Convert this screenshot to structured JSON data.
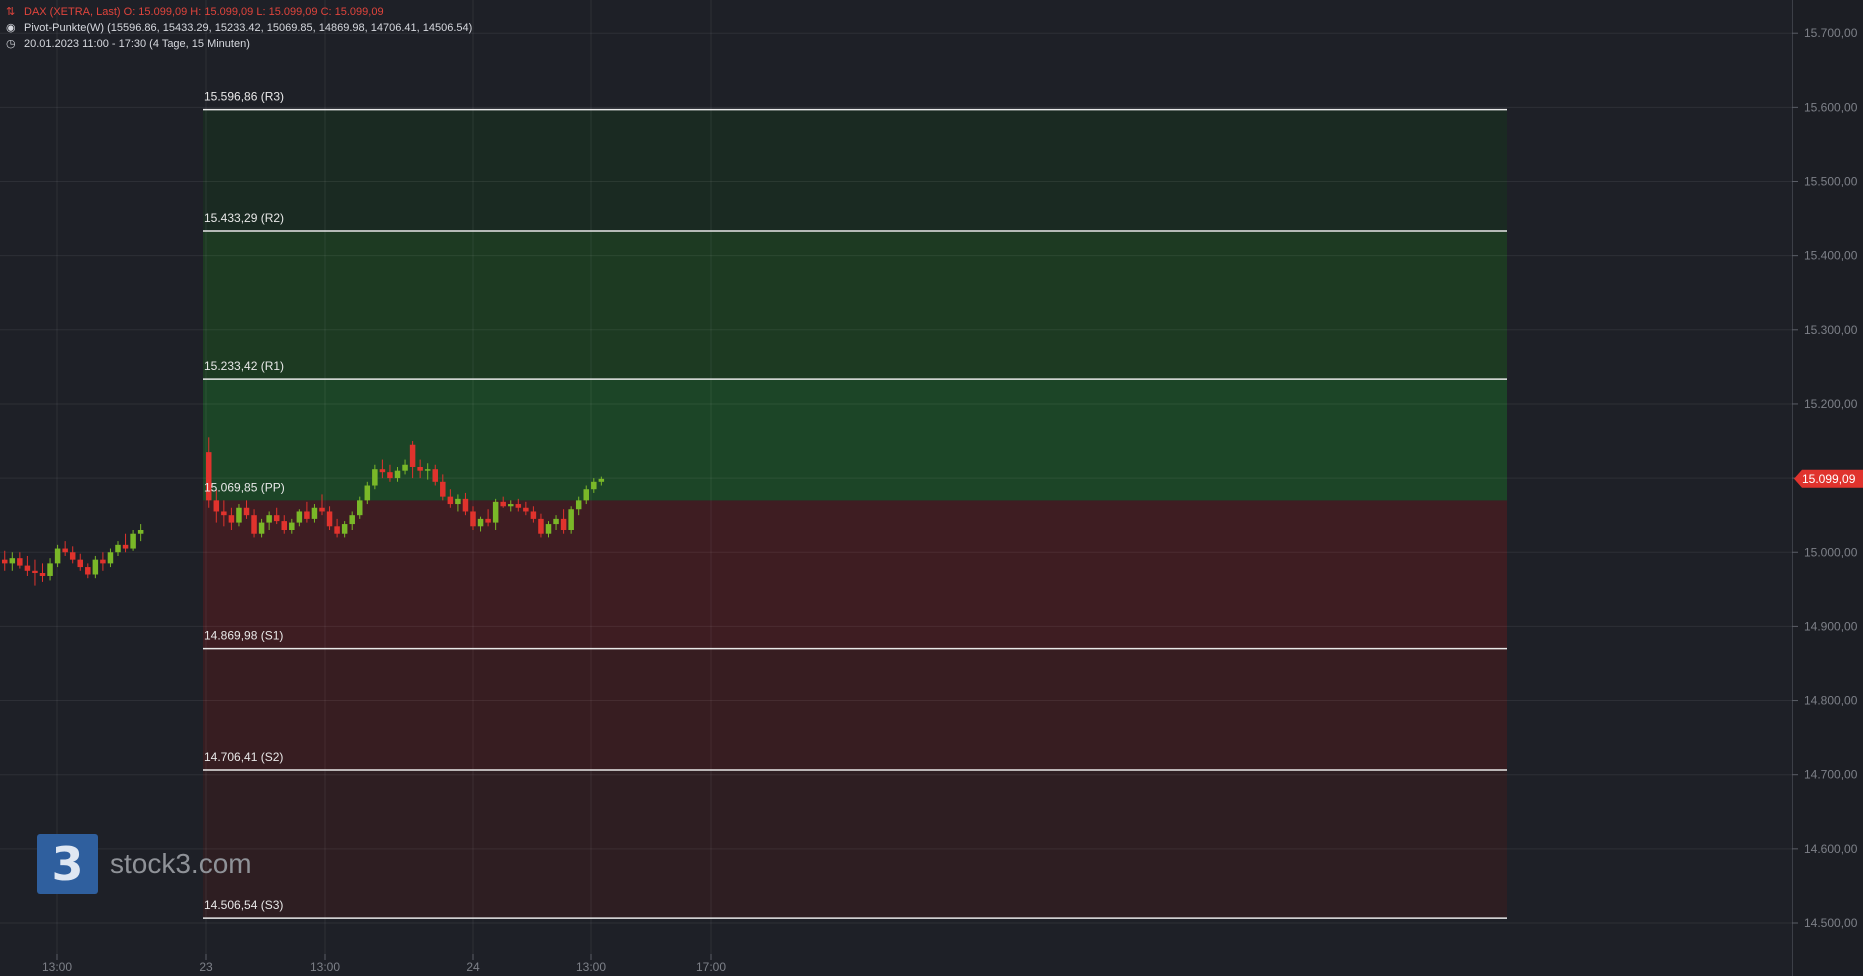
{
  "header": {
    "instrument_line": "DAX (XETRA, Last)  O: 15.099,09  H: 15.099,09  L: 15.099,09  C: 15.099,09",
    "indicator_line": "Pivot-Punkte(W)  (15596.86, 15433.29, 15233.42, 15069.85, 14869.98, 14706.41, 14506.54)",
    "period_line": "20.01.2023 11:00 - 17:30   (4 Tage, 15 Minuten)"
  },
  "icons": {
    "instrument": "candlestick-icon",
    "indicator": "target-icon",
    "period": "clock-icon"
  },
  "brand": {
    "logo_glyph": "3",
    "name": "stock3.com"
  },
  "chart_data": {
    "type": "candlestick",
    "y_axis": {
      "ylim": [
        14480,
        15725
      ],
      "ticks": [
        14500,
        14600,
        14700,
        14800,
        14900,
        15000,
        15100,
        15200,
        15300,
        15400,
        15500,
        15600,
        15700
      ],
      "tick_labels": [
        "14.500,00",
        "14.600,00",
        "14.700,00",
        "14.800,00",
        "14.900,00",
        "15.000,00",
        "15.100,00",
        "15.200,00",
        "15.300,00",
        "15.400,00",
        "15.500,00",
        "15.600,00",
        "15.700,00"
      ],
      "position": "right"
    },
    "x_axis": {
      "tick_labels": [
        "13:00",
        "23",
        "13:00",
        "24",
        "13:00",
        "17:00"
      ],
      "interval": "15 Minuten"
    },
    "last_price": {
      "value": 15099.09,
      "label": "15.099,09"
    },
    "grid": true,
    "pivot_levels": [
      {
        "name": "R3",
        "value": 15596.86,
        "label": "15.596,86 (R3)"
      },
      {
        "name": "R2",
        "value": 15433.29,
        "label": "15.433,29 (R2)"
      },
      {
        "name": "R1",
        "value": 15233.42,
        "label": "15.233,42 (R1)"
      },
      {
        "name": "PP",
        "value": 15069.85,
        "label": "15.069,85 (PP)"
      },
      {
        "name": "S1",
        "value": 14869.98,
        "label": "14.869,98 (S1)"
      },
      {
        "name": "S2",
        "value": 14706.41,
        "label": "14.706,41 (S2)"
      },
      {
        "name": "S3",
        "value": 14506.54,
        "label": "14.506,54 (S3)"
      }
    ],
    "candles": [
      [
        14990,
        15002,
        14975,
        14985
      ],
      [
        14985,
        15000,
        14975,
        14992
      ],
      [
        14992,
        15000,
        14978,
        14982
      ],
      [
        14982,
        14995,
        14968,
        14975
      ],
      [
        14975,
        14990,
        14955,
        14972
      ],
      [
        14972,
        14985,
        14960,
        14968
      ],
      [
        14968,
        14992,
        14962,
        14985
      ],
      [
        14985,
        15010,
        14980,
        15005
      ],
      [
        15005,
        15015,
        14995,
        15000
      ],
      [
        15000,
        15008,
        14985,
        14990
      ],
      [
        14990,
        14998,
        14975,
        14980
      ],
      [
        14980,
        14985,
        14965,
        14970
      ],
      [
        14970,
        14995,
        14965,
        14990
      ],
      [
        14990,
        15000,
        14975,
        14985
      ],
      [
        14985,
        15005,
        14980,
        15000
      ],
      [
        15000,
        15015,
        14995,
        15010
      ],
      [
        15010,
        15025,
        15000,
        15005
      ],
      [
        15005,
        15030,
        15002,
        15025
      ],
      [
        15025,
        15038,
        15015,
        15030
      ],
      [
        15135,
        15155,
        15060,
        15070
      ],
      [
        15070,
        15085,
        15040,
        15055
      ],
      [
        15055,
        15070,
        15035,
        15050
      ],
      [
        15050,
        15060,
        15030,
        15040
      ],
      [
        15040,
        15065,
        15035,
        15060
      ],
      [
        15060,
        15070,
        15045,
        15050
      ],
      [
        15050,
        15058,
        15020,
        15025
      ],
      [
        15025,
        15045,
        15020,
        15040
      ],
      [
        15040,
        15055,
        15030,
        15050
      ],
      [
        15050,
        15060,
        15038,
        15042
      ],
      [
        15042,
        15050,
        15025,
        15030
      ],
      [
        15030,
        15045,
        15025,
        15040
      ],
      [
        15040,
        15058,
        15035,
        15055
      ],
      [
        15055,
        15068,
        15040,
        15045
      ],
      [
        15045,
        15065,
        15040,
        15060
      ],
      [
        15060,
        15078,
        15050,
        15055
      ],
      [
        15055,
        15062,
        15030,
        15035
      ],
      [
        15035,
        15045,
        15020,
        15025
      ],
      [
        15025,
        15042,
        15020,
        15038
      ],
      [
        15038,
        15055,
        15030,
        15050
      ],
      [
        15050,
        15075,
        15045,
        15070
      ],
      [
        15070,
        15095,
        15065,
        15090
      ],
      [
        15090,
        15118,
        15085,
        15112
      ],
      [
        15112,
        15125,
        15100,
        15108
      ],
      [
        15108,
        15118,
        15095,
        15100
      ],
      [
        15100,
        15115,
        15095,
        15110
      ],
      [
        15110,
        15125,
        15105,
        15118
      ],
      [
        15145,
        15150,
        15100,
        15115
      ],
      [
        15115,
        15125,
        15100,
        15110
      ],
      [
        15110,
        15120,
        15098,
        15112
      ],
      [
        15112,
        15118,
        15090,
        15095
      ],
      [
        15095,
        15105,
        15070,
        15075
      ],
      [
        15075,
        15085,
        15060,
        15065
      ],
      [
        15065,
        15078,
        15055,
        15072
      ],
      [
        15072,
        15080,
        15050,
        15055
      ],
      [
        15055,
        15062,
        15030,
        15035
      ],
      [
        15035,
        15048,
        15028,
        15045
      ],
      [
        15045,
        15058,
        15035,
        15040
      ],
      [
        15040,
        15072,
        15030,
        15068
      ],
      [
        15068,
        15075,
        15060,
        15062
      ],
      [
        15062,
        15070,
        15055,
        15065
      ],
      [
        15065,
        15072,
        15055,
        15060
      ],
      [
        15060,
        15068,
        15050,
        15055
      ],
      [
        15055,
        15062,
        15040,
        15045
      ],
      [
        15045,
        15052,
        15020,
        15025
      ],
      [
        15025,
        15042,
        15020,
        15038
      ],
      [
        15038,
        15050,
        15030,
        15045
      ],
      [
        15045,
        15058,
        15025,
        15030
      ],
      [
        15030,
        15062,
        15025,
        15058
      ],
      [
        15058,
        15075,
        15050,
        15070
      ],
      [
        15070,
        15090,
        15065,
        15085
      ],
      [
        15085,
        15100,
        15080,
        15095
      ],
      [
        15095,
        15102,
        15090,
        15099
      ]
    ]
  }
}
